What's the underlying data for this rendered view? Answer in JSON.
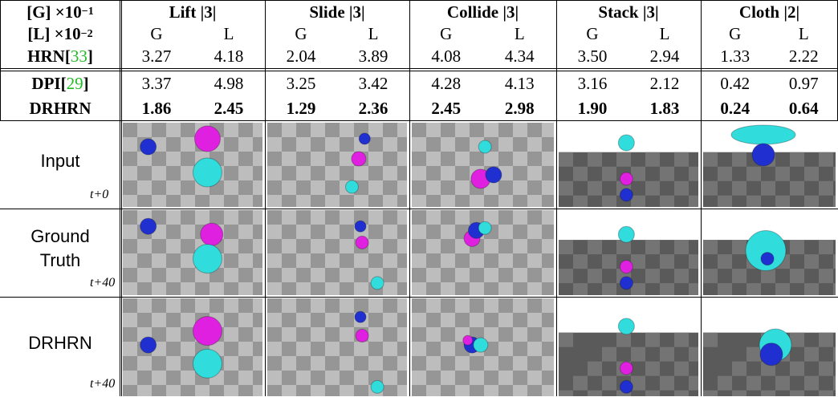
{
  "table": {
    "scale_g": {
      "text": "[G] ×10",
      "exp": "−1"
    },
    "scale_l": {
      "text": "[L] ×10",
      "exp": "−2"
    },
    "tasks": [
      "Lift |3|",
      "Slide |3|",
      "Collide |3|",
      "Stack |3|",
      "Cloth |2|"
    ],
    "subheaders": [
      "G",
      "L",
      "G",
      "L",
      "G",
      "L",
      "G",
      "L",
      "G",
      "L"
    ],
    "rows": [
      {
        "name": "HRN",
        "ref": "33",
        "values": [
          "3.27",
          "4.18",
          "2.04",
          "3.89",
          "4.08",
          "4.34",
          "3.50",
          "2.94",
          "1.33",
          "2.22"
        ]
      },
      {
        "name": "DPI",
        "ref": "29",
        "values": [
          "3.37",
          "4.98",
          "3.25",
          "3.42",
          "4.28",
          "4.13",
          "3.16",
          "2.12",
          "0.42",
          "0.97"
        ]
      },
      {
        "name": "DRHRN",
        "values": [
          "1.86",
          "2.45",
          "1.29",
          "2.36",
          "2.45",
          "2.98",
          "1.90",
          "1.83",
          "0.24",
          "0.64"
        ]
      }
    ]
  },
  "figure": {
    "rows": [
      {
        "label": [
          "Input"
        ],
        "time": "t+0"
      },
      {
        "label": [
          "Ground",
          "Truth"
        ],
        "time": "t+40"
      },
      {
        "label": [
          "DRHRN"
        ],
        "time": "t+40"
      }
    ]
  }
}
